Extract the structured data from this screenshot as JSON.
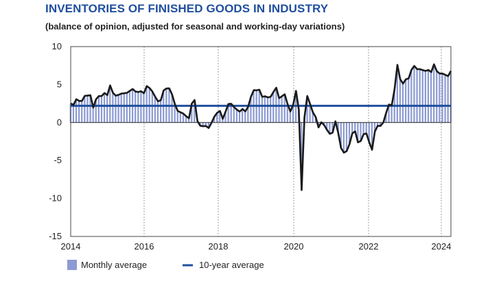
{
  "chart_data": {
    "type": "bar+line",
    "title": "INVENTORIES OF FINISHED GOODS IN INDUSTRY",
    "subtitle": "(balance of opinion, adjusted for seasonal and working-day variations)",
    "xlabel": "",
    "ylabel": "",
    "ylim": [
      -15,
      10
    ],
    "yticks": [
      10,
      5,
      0,
      -5,
      -10,
      -15
    ],
    "xticks": [
      2014,
      2016,
      2018,
      2020,
      2022,
      2024
    ],
    "x_start": 2014.0,
    "x_end": 2024.3,
    "grid": "vertical dotted at year ticks",
    "legend_position": "bottom",
    "series": [
      {
        "name": "Monthly average",
        "type": "bar",
        "color": "#8c9bd3",
        "keyframes": [
          [
            2014.0,
            2.5
          ],
          [
            2014.1,
            2.3
          ],
          [
            2014.2,
            3.4
          ],
          [
            2014.3,
            2.4
          ],
          [
            2014.4,
            3.5
          ],
          [
            2014.6,
            3.6
          ],
          [
            2014.7,
            1.6
          ],
          [
            2014.8,
            3.8
          ],
          [
            2014.9,
            3.2
          ],
          [
            2015.0,
            4.0
          ],
          [
            2015.1,
            3.5
          ],
          [
            2015.2,
            5.0
          ],
          [
            2015.3,
            3.6
          ],
          [
            2015.4,
            3.5
          ],
          [
            2015.5,
            3.8
          ],
          [
            2015.7,
            3.9
          ],
          [
            2015.9,
            4.5
          ],
          [
            2016.0,
            3.8
          ],
          [
            2016.1,
            4.3
          ],
          [
            2016.2,
            3.7
          ],
          [
            2016.3,
            4.8
          ],
          [
            2016.4,
            4.5
          ],
          [
            2016.5,
            3.9
          ],
          [
            2016.6,
            3.0
          ],
          [
            2016.7,
            2.5
          ],
          [
            2016.8,
            4.2
          ],
          [
            2016.9,
            4.5
          ],
          [
            2017.0,
            4.5
          ],
          [
            2017.1,
            3.3
          ],
          [
            2017.2,
            1.6
          ],
          [
            2017.3,
            1.4
          ],
          [
            2017.4,
            1.2
          ],
          [
            2017.5,
            0.8
          ],
          [
            2017.6,
            0.5
          ],
          [
            2017.72,
            4.3
          ],
          [
            2017.8,
            0.5
          ],
          [
            2017.9,
            -0.4
          ],
          [
            2018.0,
            -0.5
          ],
          [
            2018.05,
            -0.3
          ],
          [
            2018.1,
            -0.5
          ],
          [
            2018.2,
            -0.8
          ],
          [
            2018.3,
            0.5
          ],
          [
            2018.4,
            1.1
          ],
          [
            2018.5,
            1.7
          ],
          [
            2018.6,
            0.5
          ],
          [
            2018.7,
            1.6
          ],
          [
            2018.8,
            2.8
          ],
          [
            2018.9,
            2.2
          ],
          [
            2019.0,
            1.8
          ],
          [
            2019.1,
            1.4
          ],
          [
            2019.2,
            1.8
          ],
          [
            2019.3,
            1.4
          ],
          [
            2019.4,
            2.4
          ],
          [
            2019.5,
            4.3
          ],
          [
            2019.6,
            4.2
          ],
          [
            2019.7,
            4.4
          ],
          [
            2019.8,
            3.3
          ],
          [
            2019.9,
            3.5
          ],
          [
            2020.0,
            3.2
          ],
          [
            2020.1,
            3.6
          ],
          [
            2020.2,
            4.9
          ],
          [
            2020.3,
            3.2
          ],
          [
            2020.4,
            3.5
          ],
          [
            2020.5,
            3.8
          ],
          [
            2020.6,
            1.5
          ],
          [
            2020.7,
            1.4
          ],
          [
            2020.8,
            4.6
          ],
          [
            2020.9,
            1.7
          ],
          [
            2020.97,
            -10.6
          ],
          [
            2021.1,
            4.0
          ],
          [
            2021.2,
            3.1
          ],
          [
            2021.3,
            1.5
          ],
          [
            2021.4,
            0.9
          ],
          [
            2021.5,
            -0.7
          ],
          [
            2021.6,
            0.2
          ],
          [
            2021.7,
            -0.6
          ],
          [
            2021.8,
            -1.3
          ],
          [
            2021.9,
            -1.8
          ],
          [
            2022.0,
            0.3
          ],
          [
            2022.1,
            -1.5
          ],
          [
            2022.2,
            -3.9
          ],
          [
            2022.3,
            -4.0
          ],
          [
            2022.4,
            -3.5
          ],
          [
            2022.5,
            -1.5
          ],
          [
            2022.6,
            -1.1
          ],
          [
            2022.7,
            -2.8
          ],
          [
            2022.8,
            -2.3
          ],
          [
            2022.9,
            -1.0
          ],
          [
            2023.0,
            -2.0
          ],
          [
            2023.1,
            -4.0
          ],
          [
            2023.2,
            -1.2
          ],
          [
            2023.3,
            -0.3
          ],
          [
            2023.4,
            -0.5
          ],
          [
            2023.5,
            0.4
          ],
          [
            2023.6,
            2.5
          ],
          [
            2023.7,
            2.0
          ],
          [
            2023.8,
            4.5
          ],
          [
            2023.9,
            8.3
          ],
          [
            2024.0,
            4.4
          ],
          [
            2024.1,
            5.8
          ],
          [
            2024.2,
            5.5
          ],
          [
            2024.3,
            6.9
          ],
          [
            2024.4,
            7.5
          ],
          [
            2024.5,
            6.9
          ],
          [
            2024.6,
            7.1
          ],
          [
            2024.7,
            6.7
          ],
          [
            2024.8,
            7.0
          ],
          [
            2024.9,
            6.6
          ],
          [
            2025.0,
            7.8
          ],
          [
            2025.1,
            6.4
          ],
          [
            2025.2,
            6.5
          ],
          [
            2025.3,
            6.4
          ],
          [
            2025.4,
            6.0
          ],
          [
            2025.5,
            6.8
          ]
        ]
      },
      {
        "name": "10-year average",
        "type": "line",
        "color": "#1f4f9e",
        "value": 2.2
      }
    ]
  }
}
